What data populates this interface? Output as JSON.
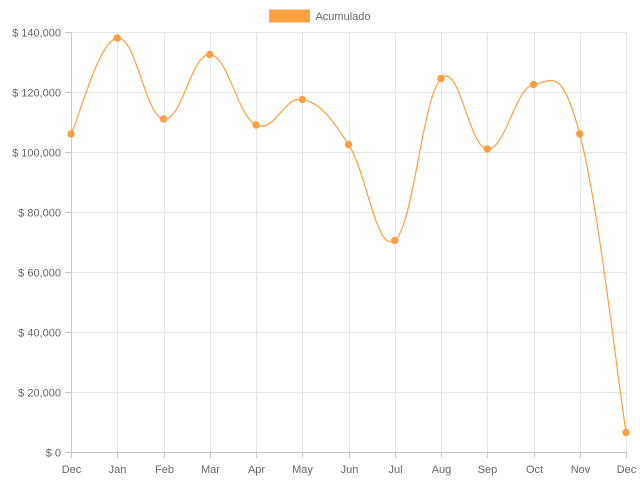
{
  "chart_data": {
    "type": "line",
    "categories": [
      "Dec",
      "Jan",
      "Feb",
      "Mar",
      "Apr",
      "May",
      "Jun",
      "Jul",
      "Aug",
      "Sep",
      "Oct",
      "Nov",
      "Dec"
    ],
    "series": [
      {
        "name": "Acumulado",
        "color": "#ff9f40",
        "values": [
          106000,
          138000,
          111000,
          132500,
          109000,
          117500,
          102500,
          70500,
          124500,
          101000,
          122500,
          106000,
          6500
        ]
      }
    ],
    "ylim": [
      0,
      140000
    ],
    "yticks": [
      0,
      20000,
      40000,
      60000,
      80000,
      100000,
      120000,
      140000
    ],
    "ytick_labels": [
      "$ 0",
      "$ 20,000",
      "$ 40,000",
      "$ 60,000",
      "$ 80,000",
      "$ 100,000",
      "$ 120,000",
      "$ 140,000"
    ],
    "title": "",
    "xlabel": "",
    "ylabel": "",
    "grid": true,
    "legend_position": "top-center",
    "curve": "smooth"
  }
}
